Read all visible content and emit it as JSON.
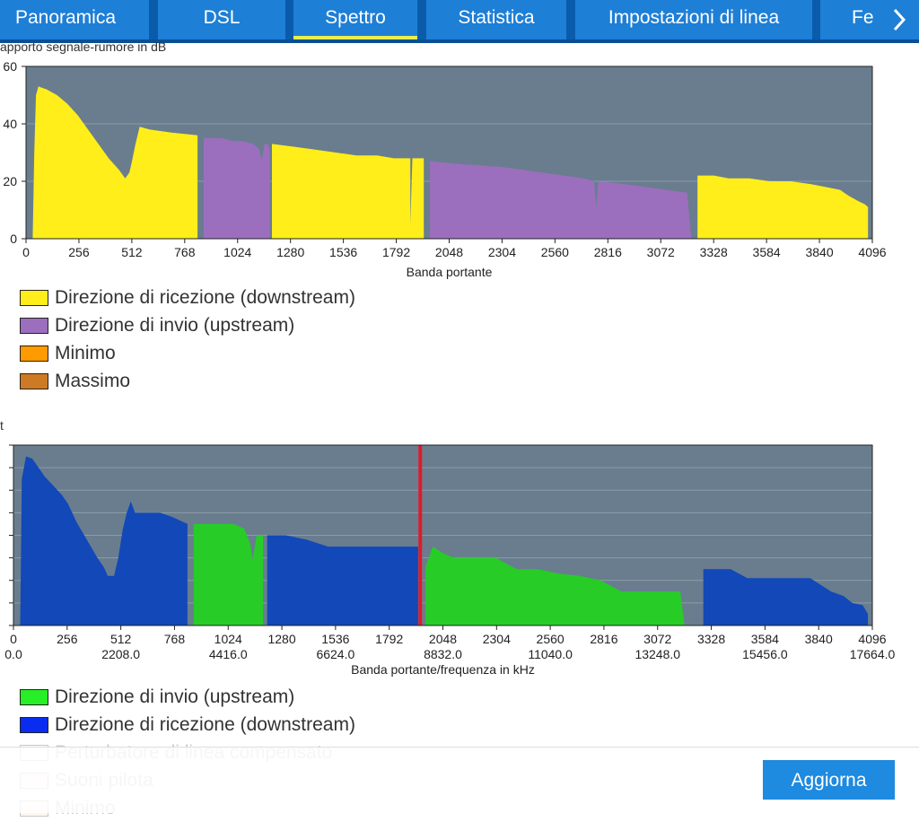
{
  "tabs": [
    {
      "label": "Panoramica",
      "active": false
    },
    {
      "label": "DSL",
      "active": false
    },
    {
      "label": "Spettro",
      "active": true
    },
    {
      "label": "Statistica",
      "active": false
    },
    {
      "label": "Impostazioni di linea",
      "active": false
    },
    {
      "label": "Fe",
      "active": false
    }
  ],
  "tab_next_icon": "chevron-right-icon",
  "chart1_ylabel": "apporto segnale-rumore in dB",
  "chart2_ylabel": "t",
  "chart_data": [
    {
      "type": "area",
      "ylabel": "apporto segnale-rumore in dB",
      "xlabel": "Banda portante",
      "ylim": [
        0,
        60
      ],
      "yticks": [
        "0",
        "20",
        "40",
        "60"
      ],
      "xlim": [
        0,
        4096
      ],
      "xticks": [
        "0",
        "256",
        "512",
        "768",
        "1024",
        "1280",
        "1536",
        "1792",
        "2048",
        "2304",
        "2560",
        "2816",
        "3072",
        "3328",
        "3584",
        "3840",
        "4096"
      ],
      "grid": true,
      "series": [
        {
          "name": "Direzione di ricezione (downstream)",
          "color": "#ffee1a",
          "points": [
            [
              32,
              0
            ],
            [
              40,
              30
            ],
            [
              48,
              50
            ],
            [
              60,
              53
            ],
            [
              100,
              52
            ],
            [
              150,
              50
            ],
            [
              200,
              47
            ],
            [
              250,
              43
            ],
            [
              300,
              38
            ],
            [
              350,
              33
            ],
            [
              400,
              28
            ],
            [
              450,
              24
            ],
            [
              480,
              21
            ],
            [
              500,
              23
            ],
            [
              510,
              26
            ],
            [
              530,
              33
            ],
            [
              550,
              39
            ],
            [
              600,
              38
            ],
            [
              700,
              37
            ],
            [
              830,
              36
            ],
            [
              830,
              0
            ],
            [
              1190,
              0
            ],
            [
              1190,
              33
            ],
            [
              1300,
              32
            ],
            [
              1400,
              31
            ],
            [
              1500,
              30
            ],
            [
              1600,
              29
            ],
            [
              1700,
              29
            ],
            [
              1780,
              28
            ],
            [
              1860,
              28
            ],
            [
              1860,
              5
            ],
            [
              1870,
              28
            ],
            [
              1925,
              28
            ],
            [
              1925,
              0
            ],
            [
              3250,
              0
            ],
            [
              3250,
              22
            ],
            [
              3330,
              22
            ],
            [
              3400,
              21
            ],
            [
              3500,
              21
            ],
            [
              3600,
              20
            ],
            [
              3700,
              20
            ],
            [
              3800,
              19
            ],
            [
              3870,
              18
            ],
            [
              3940,
              17
            ],
            [
              3980,
              15
            ],
            [
              4030,
              13
            ],
            [
              4060,
              12
            ],
            [
              4075,
              11
            ],
            [
              4075,
              0
            ]
          ]
        },
        {
          "name": "Direzione di invio (upstream)",
          "color": "#9b6fbd",
          "points": [
            [
              860,
              0
            ],
            [
              860,
              35
            ],
            [
              950,
              35
            ],
            [
              1000,
              34
            ],
            [
              1050,
              34
            ],
            [
              1100,
              33
            ],
            [
              1130,
              31
            ],
            [
              1140,
              27
            ],
            [
              1155,
              33
            ],
            [
              1170,
              33
            ],
            [
              1180,
              31
            ],
            [
              1180,
              0
            ],
            [
              1955,
              0
            ],
            [
              1955,
              27
            ],
            [
              2100,
              26
            ],
            [
              2300,
              25
            ],
            [
              2500,
              23
            ],
            [
              2700,
              21
            ],
            [
              2750,
              20
            ],
            [
              2760,
              11
            ],
            [
              2770,
              20
            ],
            [
              2900,
              19
            ],
            [
              3000,
              18
            ],
            [
              3100,
              17
            ],
            [
              3200,
              16
            ],
            [
              3220,
              0
            ]
          ]
        },
        {
          "name": "Minimo",
          "color": "#ff9a00",
          "points": []
        },
        {
          "name": "Massimo",
          "color": "#cd7a25",
          "points": []
        }
      ]
    },
    {
      "type": "area",
      "ylabel": "t",
      "xlabel": "Banda portante/frequenza in kHz",
      "ylim": [
        0,
        8
      ],
      "xlim": [
        0,
        4096
      ],
      "xticks": [
        "0",
        "256",
        "512",
        "768",
        "1024",
        "1280",
        "1536",
        "1792",
        "2048",
        "2304",
        "2560",
        "2816",
        "3072",
        "3328",
        "3584",
        "3840",
        "4096"
      ],
      "xticks2": [
        "0.0",
        "2208.0",
        "4416.0",
        "6624.0",
        "8832.0",
        "11040.0",
        "13248.0",
        "15456.0",
        "17664.0"
      ],
      "grid": true,
      "marker": {
        "x": 1940,
        "color": "#e01a2b"
      },
      "series": [
        {
          "name": "Direzione di invio (upstream)",
          "color": "#27cc27",
          "points": [
            [
              860,
              0
            ],
            [
              860,
              4.5
            ],
            [
              1000,
              4.5
            ],
            [
              1050,
              4.5
            ],
            [
              1100,
              4.3
            ],
            [
              1130,
              3.6
            ],
            [
              1140,
              2.9
            ],
            [
              1160,
              4.0
            ],
            [
              1190,
              4.0
            ],
            [
              1190,
              0
            ],
            [
              1965,
              0
            ],
            [
              1965,
              2.6
            ],
            [
              2000,
              3.5
            ],
            [
              2050,
              3.2
            ],
            [
              2100,
              3.0
            ],
            [
              2200,
              3.0
            ],
            [
              2300,
              3.0
            ],
            [
              2400,
              2.5
            ],
            [
              2500,
              2.5
            ],
            [
              2600,
              2.3
            ],
            [
              2700,
              2.2
            ],
            [
              2800,
              2.0
            ],
            [
              2900,
              1.5
            ],
            [
              3000,
              1.5
            ],
            [
              3100,
              1.5
            ],
            [
              3180,
              1.5
            ],
            [
              3200,
              0
            ]
          ]
        },
        {
          "name": "Direzione di ricezione (downstream)",
          "color": "#1248b8",
          "points": [
            [
              32,
              0
            ],
            [
              40,
              6.5
            ],
            [
              60,
              7.5
            ],
            [
              90,
              7.4
            ],
            [
              120,
              7.0
            ],
            [
              150,
              6.6
            ],
            [
              180,
              6.3
            ],
            [
              200,
              6.1
            ],
            [
              230,
              5.8
            ],
            [
              260,
              5.4
            ],
            [
              300,
              4.6
            ],
            [
              350,
              3.8
            ],
            [
              400,
              3.0
            ],
            [
              430,
              2.6
            ],
            [
              450,
              2.2
            ],
            [
              480,
              2.2
            ],
            [
              500,
              3.0
            ],
            [
              520,
              4.2
            ],
            [
              540,
              5.0
            ],
            [
              560,
              5.5
            ],
            [
              580,
              5.0
            ],
            [
              640,
              5.0
            ],
            [
              700,
              5.0
            ],
            [
              760,
              4.8
            ],
            [
              830,
              4.5
            ],
            [
              830,
              0
            ],
            [
              1210,
              0
            ],
            [
              1210,
              4.0
            ],
            [
              1300,
              4.0
            ],
            [
              1400,
              3.8
            ],
            [
              1500,
              3.5
            ],
            [
              1600,
              3.5
            ],
            [
              1700,
              3.5
            ],
            [
              1800,
              3.5
            ],
            [
              1930,
              3.5
            ],
            [
              1930,
              0
            ],
            [
              3290,
              0
            ],
            [
              3290,
              2.5
            ],
            [
              3420,
              2.5
            ],
            [
              3500,
              2.1
            ],
            [
              3550,
              2.1
            ],
            [
              3600,
              2.1
            ],
            [
              3700,
              2.1
            ],
            [
              3800,
              2.1
            ],
            [
              3900,
              1.5
            ],
            [
              3960,
              1.3
            ],
            [
              4000,
              1.0
            ],
            [
              4050,
              0.9
            ],
            [
              4075,
              0.5
            ],
            [
              4075,
              0
            ]
          ]
        },
        {
          "name": "Perturbatore di linea compensato",
          "color": "#ffffff",
          "points": []
        },
        {
          "name": "Suoni pilota",
          "color": "#ff9999",
          "points": []
        },
        {
          "name": "Minimo",
          "color": "#ffcc88",
          "points": []
        }
      ]
    }
  ],
  "legend1": [
    {
      "label": "Direzione di ricezione (downstream)",
      "color": "#ffee1a"
    },
    {
      "label": "Direzione di invio (upstream)",
      "color": "#9b6fbd"
    },
    {
      "label": "Minimo",
      "color": "#ff9a00"
    },
    {
      "label": "Massimo",
      "color": "#cd7a25"
    }
  ],
  "legend2": [
    {
      "label": "Direzione di invio (upstream)",
      "color": "#27ee27"
    },
    {
      "label": "Direzione di ricezione (downstream)",
      "color": "#0a2cf0"
    },
    {
      "label": "Perturbatore di linea compensato",
      "color": "#ffffff"
    },
    {
      "label": "Suoni pilota",
      "color": "#ffcccc"
    },
    {
      "label": "Minimo",
      "color": "#ffe0b8"
    }
  ],
  "refresh_label": "Aggiorna"
}
